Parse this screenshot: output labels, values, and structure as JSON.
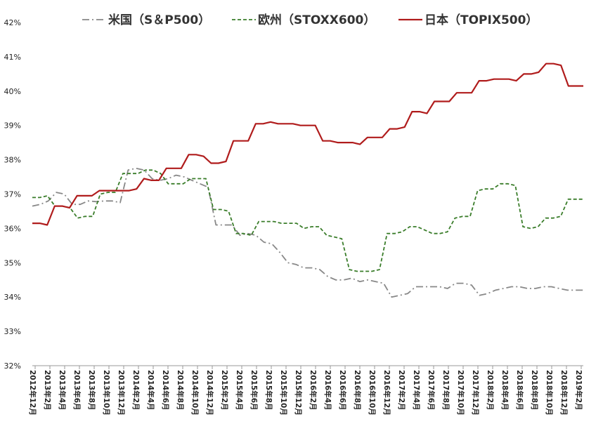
{
  "chart_data": {
    "type": "line",
    "title": "",
    "xlabel": "",
    "ylabel": "",
    "ylim": [
      32,
      42
    ],
    "y_ticks": [
      "32%",
      "33%",
      "34%",
      "35%",
      "36%",
      "37%",
      "38%",
      "39%",
      "40%",
      "41%",
      "42%"
    ],
    "grid": false,
    "legend_position": "top",
    "x_tick_labels": [
      "2012年12月",
      "2013年2月",
      "2013年4月",
      "2013年6月",
      "2013年8月",
      "2013年10月",
      "2013年12月",
      "2014年2月",
      "2014年4月",
      "2014年6月",
      "2014年8月",
      "2014年10月",
      "2014年12月",
      "2015年2月",
      "2015年4月",
      "2015年6月",
      "2015年8月",
      "2015年10月",
      "2015年12月",
      "2016年2月",
      "2016年4月",
      "2016年6月",
      "2016年8月",
      "2016年10月",
      "2016年12月",
      "2017年2月",
      "2017年4月",
      "2017年6月",
      "2017年8月",
      "2017年10月",
      "2017年12月",
      "2018年2月",
      "2018年4月",
      "2018年6月",
      "2018年8月",
      "2018年10月",
      "2018年12月",
      "2019年2月"
    ],
    "series": [
      {
        "name": "米国（S＆P500）",
        "color": "#888888",
        "dash": "dashdot",
        "values": [
          36.65,
          36.7,
          36.8,
          37.05,
          37.0,
          36.7,
          36.7,
          36.8,
          36.78,
          36.8,
          36.8,
          36.75,
          37.7,
          37.75,
          37.7,
          37.45,
          37.4,
          37.45,
          37.55,
          37.5,
          37.4,
          37.3,
          37.2,
          36.1,
          36.1,
          36.1,
          35.8,
          35.85,
          35.8,
          35.6,
          35.55,
          35.3,
          35.0,
          34.95,
          34.85,
          34.85,
          34.8,
          34.6,
          34.5,
          34.5,
          34.55,
          34.45,
          34.5,
          34.45,
          34.4,
          34.0,
          34.05,
          34.1,
          34.3,
          34.3,
          34.3,
          34.3,
          34.25,
          34.4,
          34.4,
          34.35,
          34.05,
          34.1,
          34.2,
          34.25,
          34.3,
          34.3,
          34.25,
          34.25,
          34.3,
          34.3,
          34.25,
          34.2,
          34.2,
          34.2
        ]
      },
      {
        "name": "欧州（STOXX600）",
        "color": "#3a7d2a",
        "dash": "dashed",
        "values": [
          36.9,
          36.9,
          36.95,
          36.65,
          36.65,
          36.6,
          36.3,
          36.35,
          36.35,
          37.0,
          37.05,
          37.05,
          37.6,
          37.6,
          37.6,
          37.7,
          37.7,
          37.6,
          37.3,
          37.3,
          37.3,
          37.45,
          37.45,
          37.45,
          36.55,
          36.55,
          36.5,
          35.85,
          35.85,
          35.8,
          36.2,
          36.2,
          36.2,
          36.15,
          36.15,
          36.15,
          36.0,
          36.05,
          36.05,
          35.8,
          35.75,
          35.7,
          34.8,
          34.75,
          34.75,
          34.75,
          34.8,
          35.85,
          35.85,
          35.9,
          36.05,
          36.05,
          35.95,
          35.85,
          35.85,
          35.9,
          36.3,
          36.35,
          36.35,
          37.1,
          37.15,
          37.15,
          37.3,
          37.3,
          37.25,
          36.05,
          36.0,
          36.05,
          36.3,
          36.3,
          36.35,
          36.85,
          36.85,
          36.85
        ]
      },
      {
        "name": "日本（TOPIX500）",
        "color": "#b01c1c",
        "dash": "solid",
        "values": [
          36.15,
          36.15,
          36.1,
          36.65,
          36.65,
          36.6,
          36.95,
          36.95,
          36.95,
          37.1,
          37.1,
          37.1,
          37.1,
          37.1,
          37.15,
          37.45,
          37.4,
          37.4,
          37.75,
          37.75,
          37.75,
          38.15,
          38.15,
          38.1,
          37.9,
          37.9,
          37.95,
          38.55,
          38.55,
          38.55,
          39.05,
          39.05,
          39.1,
          39.05,
          39.05,
          39.05,
          39.0,
          39.0,
          39.0,
          38.55,
          38.55,
          38.5,
          38.5,
          38.5,
          38.45,
          38.65,
          38.65,
          38.65,
          38.9,
          38.9,
          38.95,
          39.4,
          39.4,
          39.35,
          39.7,
          39.7,
          39.7,
          39.95,
          39.95,
          39.95,
          40.3,
          40.3,
          40.35,
          40.35,
          40.35,
          40.3,
          40.5,
          40.5,
          40.55,
          40.8,
          40.8,
          40.75,
          40.15,
          40.15,
          40.15
        ]
      }
    ]
  }
}
